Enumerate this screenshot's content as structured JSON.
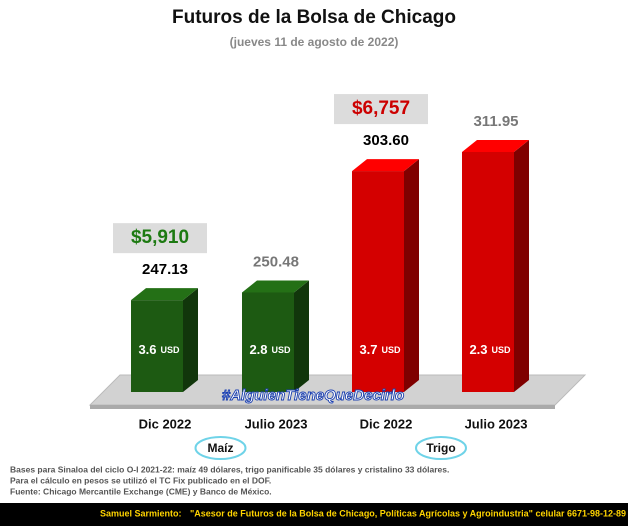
{
  "chart_data": {
    "type": "bar",
    "title": "Futuros de la Bolsa de Chicago",
    "subtitle": "(jueves 11 de agosto de 2022)",
    "categories": [
      "Dic 2022",
      "Julio 2023",
      "Dic 2022",
      "Julio 2023"
    ],
    "values": [
      247.13,
      250.48,
      303.6,
      311.95
    ],
    "value_labels": [
      "247.13",
      "250.48",
      "303.60",
      "311.95"
    ],
    "colors": [
      "#1d5a12",
      "#1d5a12",
      "#d40000",
      "#d40000"
    ],
    "value_label_colors": [
      "#000000",
      "#777777",
      "#000000",
      "#777777"
    ],
    "inner_values": [
      3.6,
      2.8,
      3.7,
      2.3
    ],
    "inner_unit": "USD",
    "groups": [
      {
        "name": "Maíz",
        "price": "$5,910",
        "price_color": "#1d7a12"
      },
      {
        "name": "Trigo",
        "price": "$6,757",
        "price_color": "#cc0000"
      }
    ],
    "watermark": "#AlguienTieneQueDecirlo"
  },
  "notes": [
    "Bases para Sinaloa del ciclo O-I 2021-22: maíz 49 dólares, trigo panificable 35 dólares y cristalino 33 dólares.",
    "Para el cálculo en pesos se utilizó el TC Fix publicado en el DOF.",
    "Fuente: Chicago Mercantile Exchange (CME) y Banco de México."
  ],
  "footer": {
    "author": "Samuel Sarmiento:",
    "text": "\"Asesor de Futuros de la Bolsa de Chicago, Políticas Agrícolas y Agroindustria\" celular 6671-98-12-89"
  }
}
